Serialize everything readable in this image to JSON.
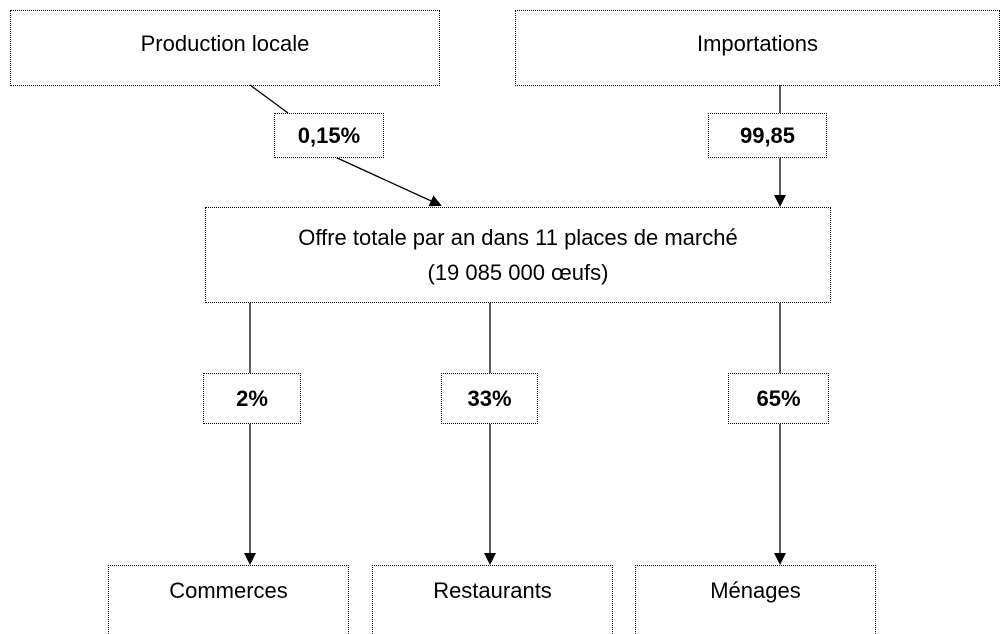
{
  "nodes": [
    {
      "label": "Production locale"
    },
    {
      "label": "Importations"
    },
    {
      "label": "Offre totale par an dans 11 places de marché",
      "sublabel": "(19 085 000 œufs)"
    },
    {
      "label": "Commerces"
    },
    {
      "label": "Restaurants"
    },
    {
      "label": "Ménages"
    }
  ],
  "flows": [
    {
      "label": "0,15%"
    },
    {
      "label": "99,85"
    },
    {
      "label": "2%"
    },
    {
      "label": "33%"
    },
    {
      "label": "65%"
    }
  ]
}
